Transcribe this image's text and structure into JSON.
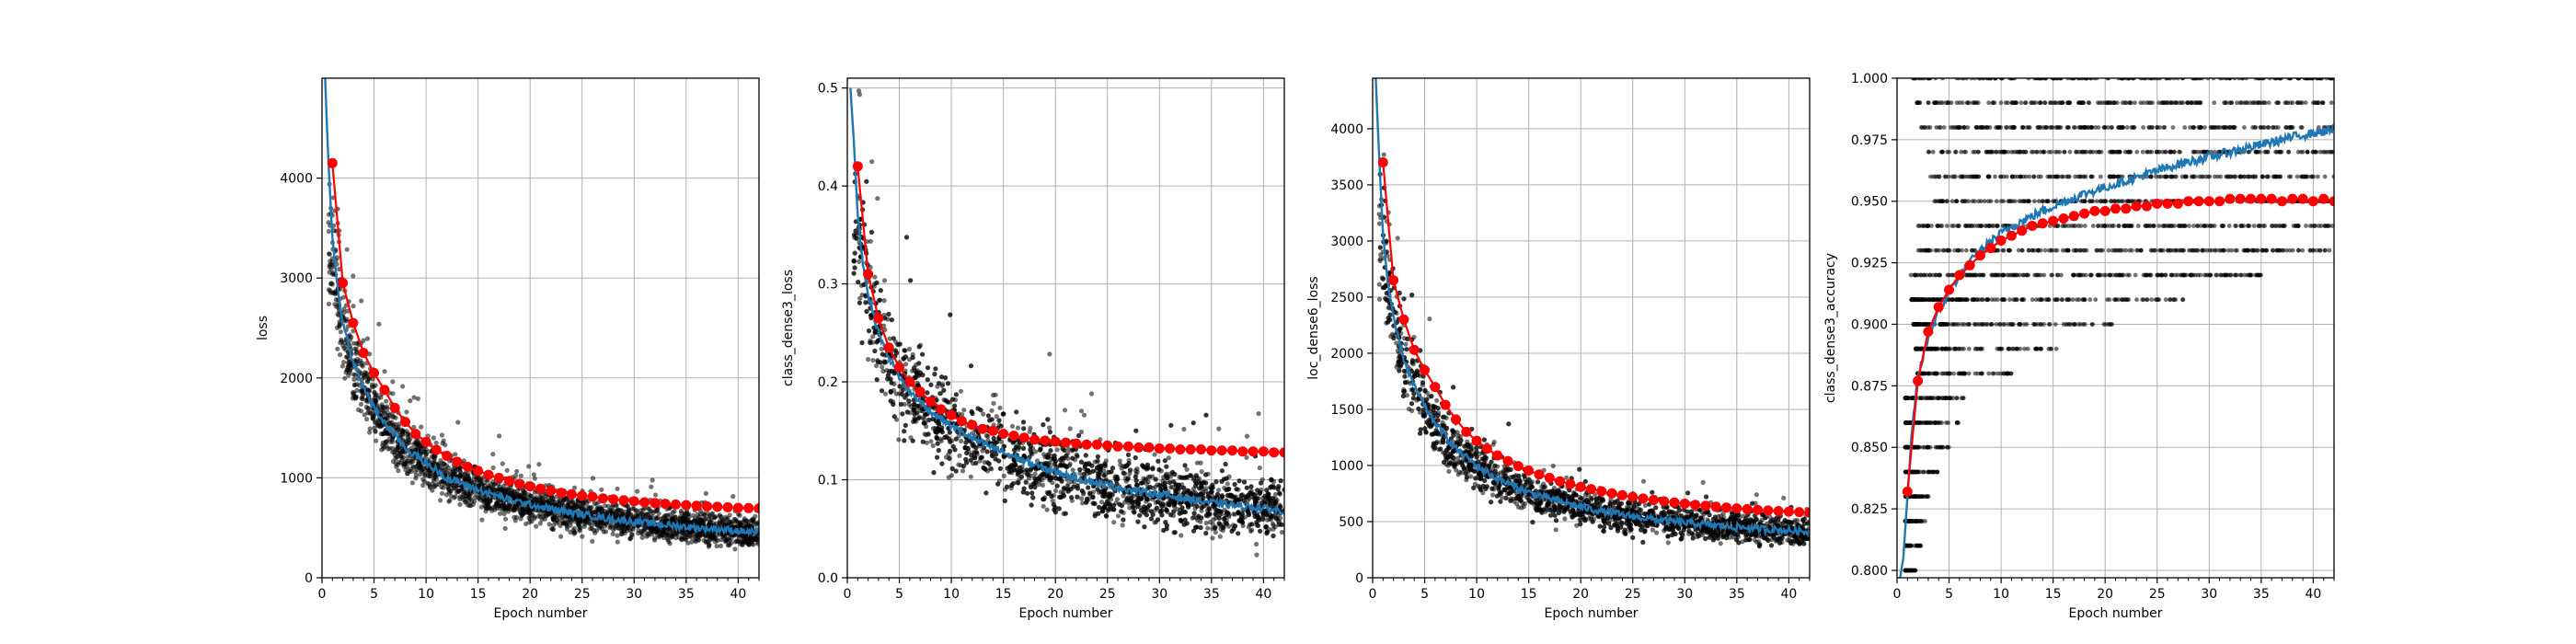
{
  "chart_data": [
    {
      "type": "scatter",
      "xlabel": "Epoch number",
      "ylabel": "loss",
      "xlim": [
        0,
        42
      ],
      "ylim": [
        0,
        5000
      ],
      "xticks": [
        0,
        5,
        10,
        15,
        20,
        25,
        30,
        35,
        40
      ],
      "yticks": [
        0,
        1000,
        2000,
        3000,
        4000
      ],
      "grid": true,
      "series": [
        {
          "kind": "scatter",
          "color": "#000000",
          "x": [
            1,
            2,
            3,
            4,
            5,
            6,
            8,
            10,
            12,
            15,
            18,
            21,
            24,
            27,
            30,
            33,
            36,
            39,
            42
          ],
          "y": [
            3300,
            2500,
            2150,
            1900,
            1700,
            1550,
            1300,
            1150,
            1000,
            880,
            780,
            710,
            650,
            600,
            560,
            530,
            500,
            480,
            450
          ],
          "spread": [
            700,
            600,
            500,
            450,
            400,
            380,
            340,
            300,
            280,
            260,
            240,
            230,
            220,
            210,
            200,
            200,
            190,
            190,
            180
          ]
        },
        {
          "kind": "line",
          "color": "#1f77b4",
          "x": [
            0.3,
            0.6,
            1,
            1.5,
            2,
            3,
            4,
            5,
            6,
            8,
            10,
            12,
            15,
            18,
            21,
            24,
            27,
            30,
            33,
            36,
            39,
            42
          ],
          "y": [
            5000,
            4200,
            3400,
            2900,
            2550,
            2150,
            1900,
            1700,
            1550,
            1300,
            1150,
            1000,
            880,
            780,
            710,
            650,
            600,
            560,
            530,
            500,
            480,
            450
          ]
        },
        {
          "kind": "marker_line",
          "color": "#ff0000",
          "x": [
            1,
            2,
            3,
            4,
            5,
            6,
            7,
            8,
            9,
            10,
            11,
            12,
            13,
            14,
            15,
            16,
            17,
            18,
            19,
            20,
            21,
            22,
            23,
            24,
            25,
            26,
            27,
            28,
            29,
            30,
            31,
            32,
            33,
            34,
            35,
            36,
            37,
            38,
            39,
            40,
            41,
            42
          ],
          "y": [
            4150,
            2950,
            2550,
            2250,
            2050,
            1880,
            1700,
            1560,
            1440,
            1360,
            1280,
            1220,
            1160,
            1110,
            1070,
            1030,
            1000,
            970,
            940,
            915,
            890,
            870,
            850,
            835,
            820,
            810,
            795,
            785,
            775,
            765,
            755,
            748,
            740,
            733,
            727,
            720,
            715,
            710,
            705,
            700,
            697,
            695
          ]
        }
      ]
    },
    {
      "type": "scatter",
      "xlabel": "Epoch number",
      "ylabel": "class_dense3_loss",
      "xlim": [
        0,
        42
      ],
      "ylim": [
        0,
        0.51
      ],
      "xticks": [
        0,
        5,
        10,
        15,
        20,
        25,
        30,
        35,
        40
      ],
      "yticks": [
        0.0,
        0.1,
        0.2,
        0.3,
        0.4,
        0.5
      ],
      "grid": true,
      "series": [
        {
          "kind": "scatter",
          "color": "#000000",
          "x": [
            1,
            2,
            3,
            4,
            5,
            6,
            8,
            10,
            12,
            15,
            18,
            21,
            24,
            27,
            30,
            33,
            36,
            39,
            42
          ],
          "y": [
            0.36,
            0.29,
            0.25,
            0.225,
            0.205,
            0.19,
            0.17,
            0.155,
            0.142,
            0.128,
            0.115,
            0.105,
            0.097,
            0.09,
            0.085,
            0.08,
            0.075,
            0.072,
            0.068
          ],
          "spread": [
            0.09,
            0.08,
            0.075,
            0.07,
            0.065,
            0.062,
            0.058,
            0.055,
            0.052,
            0.05,
            0.048,
            0.046,
            0.045,
            0.044,
            0.043,
            0.042,
            0.042,
            0.041,
            0.04
          ]
        },
        {
          "kind": "line",
          "color": "#1f77b4",
          "x": [
            0.3,
            0.6,
            1,
            1.5,
            2,
            3,
            4,
            5,
            6,
            8,
            10,
            12,
            15,
            18,
            21,
            24,
            27,
            30,
            33,
            36,
            39,
            42
          ],
          "y": [
            0.5,
            0.45,
            0.37,
            0.32,
            0.29,
            0.25,
            0.225,
            0.205,
            0.19,
            0.17,
            0.155,
            0.142,
            0.128,
            0.115,
            0.105,
            0.097,
            0.09,
            0.085,
            0.08,
            0.075,
            0.072,
            0.068
          ]
        },
        {
          "kind": "marker_line",
          "color": "#ff0000",
          "x": [
            1,
            2,
            3,
            4,
            5,
            6,
            7,
            8,
            9,
            10,
            11,
            12,
            13,
            14,
            15,
            16,
            17,
            18,
            19,
            20,
            21,
            22,
            23,
            24,
            25,
            26,
            27,
            28,
            29,
            30,
            31,
            32,
            33,
            34,
            35,
            36,
            37,
            38,
            39,
            40,
            41,
            42
          ],
          "y": [
            0.42,
            0.31,
            0.265,
            0.235,
            0.215,
            0.2,
            0.19,
            0.18,
            0.172,
            0.166,
            0.16,
            0.156,
            0.152,
            0.15,
            0.147,
            0.145,
            0.143,
            0.141,
            0.14,
            0.139,
            0.138,
            0.137,
            0.136,
            0.136,
            0.135,
            0.134,
            0.134,
            0.133,
            0.133,
            0.132,
            0.132,
            0.131,
            0.131,
            0.131,
            0.13,
            0.13,
            0.13,
            0.129,
            0.129,
            0.129,
            0.128,
            0.128
          ]
        }
      ]
    },
    {
      "type": "scatter",
      "xlabel": "Epoch number",
      "ylabel": "loc_dense6_loss",
      "xlim": [
        0,
        42
      ],
      "ylim": [
        0,
        4450
      ],
      "xticks": [
        0,
        5,
        10,
        15,
        20,
        25,
        30,
        35,
        40
      ],
      "yticks": [
        0,
        500,
        1000,
        1500,
        2000,
        2500,
        3000,
        3500,
        4000
      ],
      "grid": true,
      "series": [
        {
          "kind": "scatter",
          "color": "#000000",
          "x": [
            1,
            2,
            3,
            4,
            5,
            6,
            8,
            10,
            12,
            15,
            18,
            21,
            24,
            27,
            30,
            33,
            36,
            39,
            42
          ],
          "y": [
            3000,
            2300,
            1950,
            1700,
            1520,
            1380,
            1150,
            1000,
            880,
            760,
            680,
            610,
            560,
            520,
            490,
            465,
            445,
            425,
            410
          ],
          "spread": [
            650,
            560,
            470,
            420,
            380,
            350,
            300,
            270,
            250,
            230,
            210,
            200,
            190,
            180,
            175,
            170,
            165,
            160,
            160
          ]
        },
        {
          "kind": "line",
          "color": "#1f77b4",
          "x": [
            0.3,
            0.6,
            1,
            1.5,
            2,
            3,
            4,
            5,
            6,
            8,
            10,
            12,
            15,
            18,
            21,
            24,
            27,
            30,
            33,
            36,
            39,
            42
          ],
          "y": [
            4450,
            3800,
            3050,
            2600,
            2300,
            1950,
            1700,
            1520,
            1380,
            1150,
            1000,
            880,
            760,
            680,
            610,
            560,
            520,
            490,
            465,
            445,
            425,
            410
          ]
        },
        {
          "kind": "marker_line",
          "color": "#ff0000",
          "x": [
            1,
            2,
            3,
            4,
            5,
            6,
            7,
            8,
            9,
            10,
            11,
            12,
            13,
            14,
            15,
            16,
            17,
            18,
            19,
            20,
            21,
            22,
            23,
            24,
            25,
            26,
            27,
            28,
            29,
            30,
            31,
            32,
            33,
            34,
            35,
            36,
            37,
            38,
            39,
            40,
            41,
            42
          ],
          "y": [
            3700,
            2650,
            2300,
            2030,
            1850,
            1700,
            1540,
            1410,
            1300,
            1220,
            1150,
            1090,
            1040,
            995,
            955,
            920,
            890,
            860,
            835,
            810,
            790,
            770,
            752,
            735,
            720,
            706,
            693,
            681,
            670,
            660,
            650,
            641,
            633,
            625,
            618,
            611,
            605,
            599,
            594,
            589,
            585,
            581
          ]
        }
      ]
    },
    {
      "type": "scatter",
      "xlabel": "Epoch number",
      "ylabel": "class_dense3_accuracy",
      "xlim": [
        0,
        42
      ],
      "ylim": [
        0.797,
        1.0
      ],
      "xticks": [
        0,
        5,
        10,
        15,
        20,
        25,
        30,
        35,
        40
      ],
      "yticks": [
        0.8,
        0.825,
        0.85,
        0.875,
        0.9,
        0.925,
        0.95,
        0.975,
        1.0
      ],
      "ytick_labels": [
        "0.800",
        "0.825",
        "0.850",
        "0.875",
        "0.900",
        "0.925",
        "0.950",
        "0.975",
        "1.000"
      ],
      "grid": true,
      "series": [
        {
          "kind": "scatter_levels",
          "color": "#000000",
          "levels": [
            0.8,
            0.81,
            0.82,
            0.83,
            0.84,
            0.85,
            0.86,
            0.87,
            0.88,
            0.89,
            0.9,
            0.91,
            0.92,
            0.93,
            0.94,
            0.95,
            0.96,
            0.97,
            0.98,
            0.99,
            1.0
          ]
        },
        {
          "kind": "line",
          "color": "#1f77b4",
          "x": [
            0.3,
            0.6,
            1,
            1.5,
            2,
            3,
            4,
            5,
            6,
            8,
            10,
            12,
            15,
            18,
            21,
            24,
            27,
            30,
            33,
            36,
            39,
            42
          ],
          "y": [
            0.797,
            0.805,
            0.83,
            0.86,
            0.878,
            0.895,
            0.905,
            0.913,
            0.92,
            0.93,
            0.937,
            0.942,
            0.948,
            0.953,
            0.957,
            0.961,
            0.965,
            0.968,
            0.971,
            0.974,
            0.977,
            0.979
          ]
        },
        {
          "kind": "marker_line",
          "color": "#ff0000",
          "x": [
            1,
            2,
            3,
            4,
            5,
            6,
            7,
            8,
            9,
            10,
            11,
            12,
            13,
            14,
            15,
            16,
            17,
            18,
            19,
            20,
            21,
            22,
            23,
            24,
            25,
            26,
            27,
            28,
            29,
            30,
            31,
            32,
            33,
            34,
            35,
            36,
            37,
            38,
            39,
            40,
            41,
            42
          ],
          "y": [
            0.832,
            0.877,
            0.897,
            0.907,
            0.914,
            0.92,
            0.924,
            0.928,
            0.931,
            0.934,
            0.936,
            0.938,
            0.94,
            0.941,
            0.942,
            0.943,
            0.944,
            0.945,
            0.946,
            0.946,
            0.947,
            0.947,
            0.948,
            0.948,
            0.949,
            0.949,
            0.949,
            0.95,
            0.95,
            0.95,
            0.95,
            0.951,
            0.951,
            0.951,
            0.951,
            0.951,
            0.95,
            0.951,
            0.951,
            0.95,
            0.951,
            0.95
          ]
        }
      ]
    }
  ]
}
